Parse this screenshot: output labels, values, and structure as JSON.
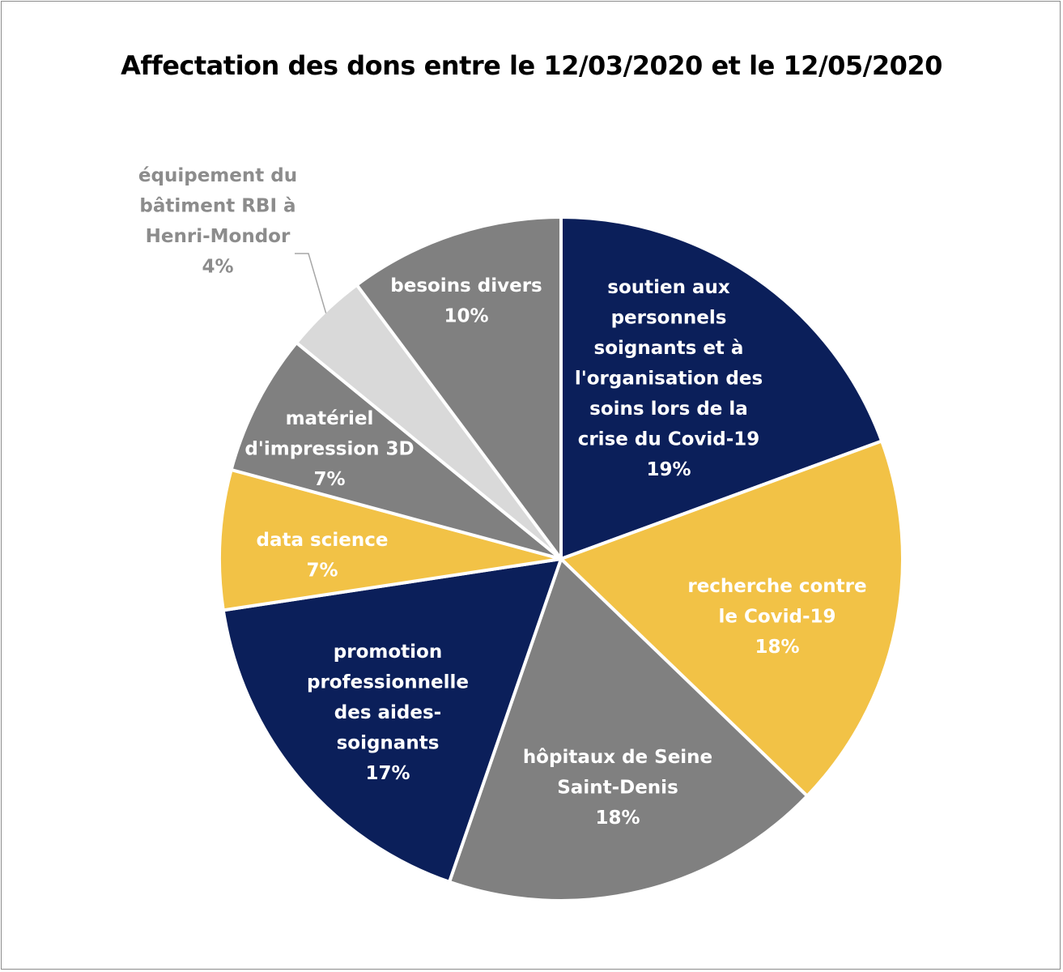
{
  "chart_data": {
    "type": "pie",
    "title": "Affectation des dons entre le 12/03/2020 et le 12/05/2020",
    "start_angle_deg": 0,
    "direction": "clockwise",
    "slices": [
      {
        "label_lines": [
          "soutien aux",
          "personnels",
          "soignants et à",
          "l'organisation des",
          "soins lors de la",
          "crise du Covid-19"
        ],
        "percent_label": "19%",
        "value": 19.4,
        "color": "#0b1f5a",
        "label_color": "#ffffff"
      },
      {
        "label_lines": [
          "recherche contre",
          "le Covid-19"
        ],
        "percent_label": "18%",
        "value": 17.8,
        "color": "#f2c246",
        "label_color": "#ffffff"
      },
      {
        "label_lines": [
          "hôpitaux de Seine",
          "Saint-Denis"
        ],
        "percent_label": "18%",
        "value": 18.1,
        "color": "#808080",
        "label_color": "#ffffff"
      },
      {
        "label_lines": [
          "promotion",
          "professionnelle",
          "des aides-",
          "soignants"
        ],
        "percent_label": "17%",
        "value": 17.3,
        "color": "#0b1f5a",
        "label_color": "#ffffff"
      },
      {
        "label_lines": [
          "data science"
        ],
        "percent_label": "7%",
        "value": 6.6,
        "color": "#f2c246",
        "label_color": "#ffffff"
      },
      {
        "label_lines": [
          "matériel",
          "d'impression 3D"
        ],
        "percent_label": "7%",
        "value": 6.7,
        "color": "#808080",
        "label_color": "#ffffff"
      },
      {
        "label_lines": [
          "équipement du",
          "bâtiment RBI à",
          "Henri-Mondor"
        ],
        "percent_label": "4%",
        "value": 3.9,
        "color": "#d9d9d9",
        "label_color": "#8c8c8c",
        "label_outside": true
      },
      {
        "label_lines": [
          "besoins divers"
        ],
        "percent_label": "10%",
        "value": 10.2,
        "color": "#808080",
        "label_color": "#ffffff"
      }
    ]
  }
}
